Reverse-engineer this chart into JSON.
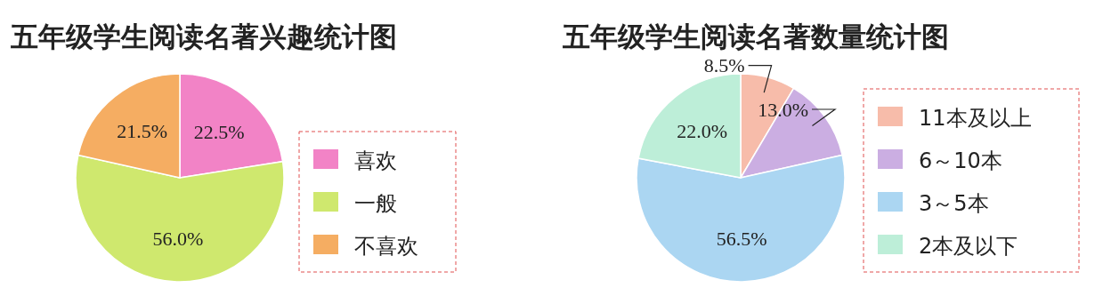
{
  "chart_data": [
    {
      "type": "pie",
      "title": "五年级学生阅读名著兴趣统计图",
      "categories": [
        "喜欢",
        "一般",
        "不喜欢"
      ],
      "values": [
        22.5,
        56.0,
        21.5
      ],
      "value_labels": [
        "22.5%",
        "56.0%",
        "21.5%"
      ],
      "colors": [
        "#f283c6",
        "#cfe86e",
        "#f5ad62"
      ],
      "legend": "right"
    },
    {
      "type": "pie",
      "title": "五年级学生阅读名著数量统计图",
      "categories": [
        "11本及以上",
        "6～10本",
        "3～5本",
        "2本及以下"
      ],
      "values": [
        8.5,
        13.0,
        56.5,
        22.0
      ],
      "value_labels": [
        "8.5%",
        "13.0%",
        "56.5%",
        "22.0%"
      ],
      "colors": [
        "#f7bcaa",
        "#cbaee2",
        "#abd6f2",
        "#bdeed8"
      ],
      "legend": "right"
    }
  ]
}
